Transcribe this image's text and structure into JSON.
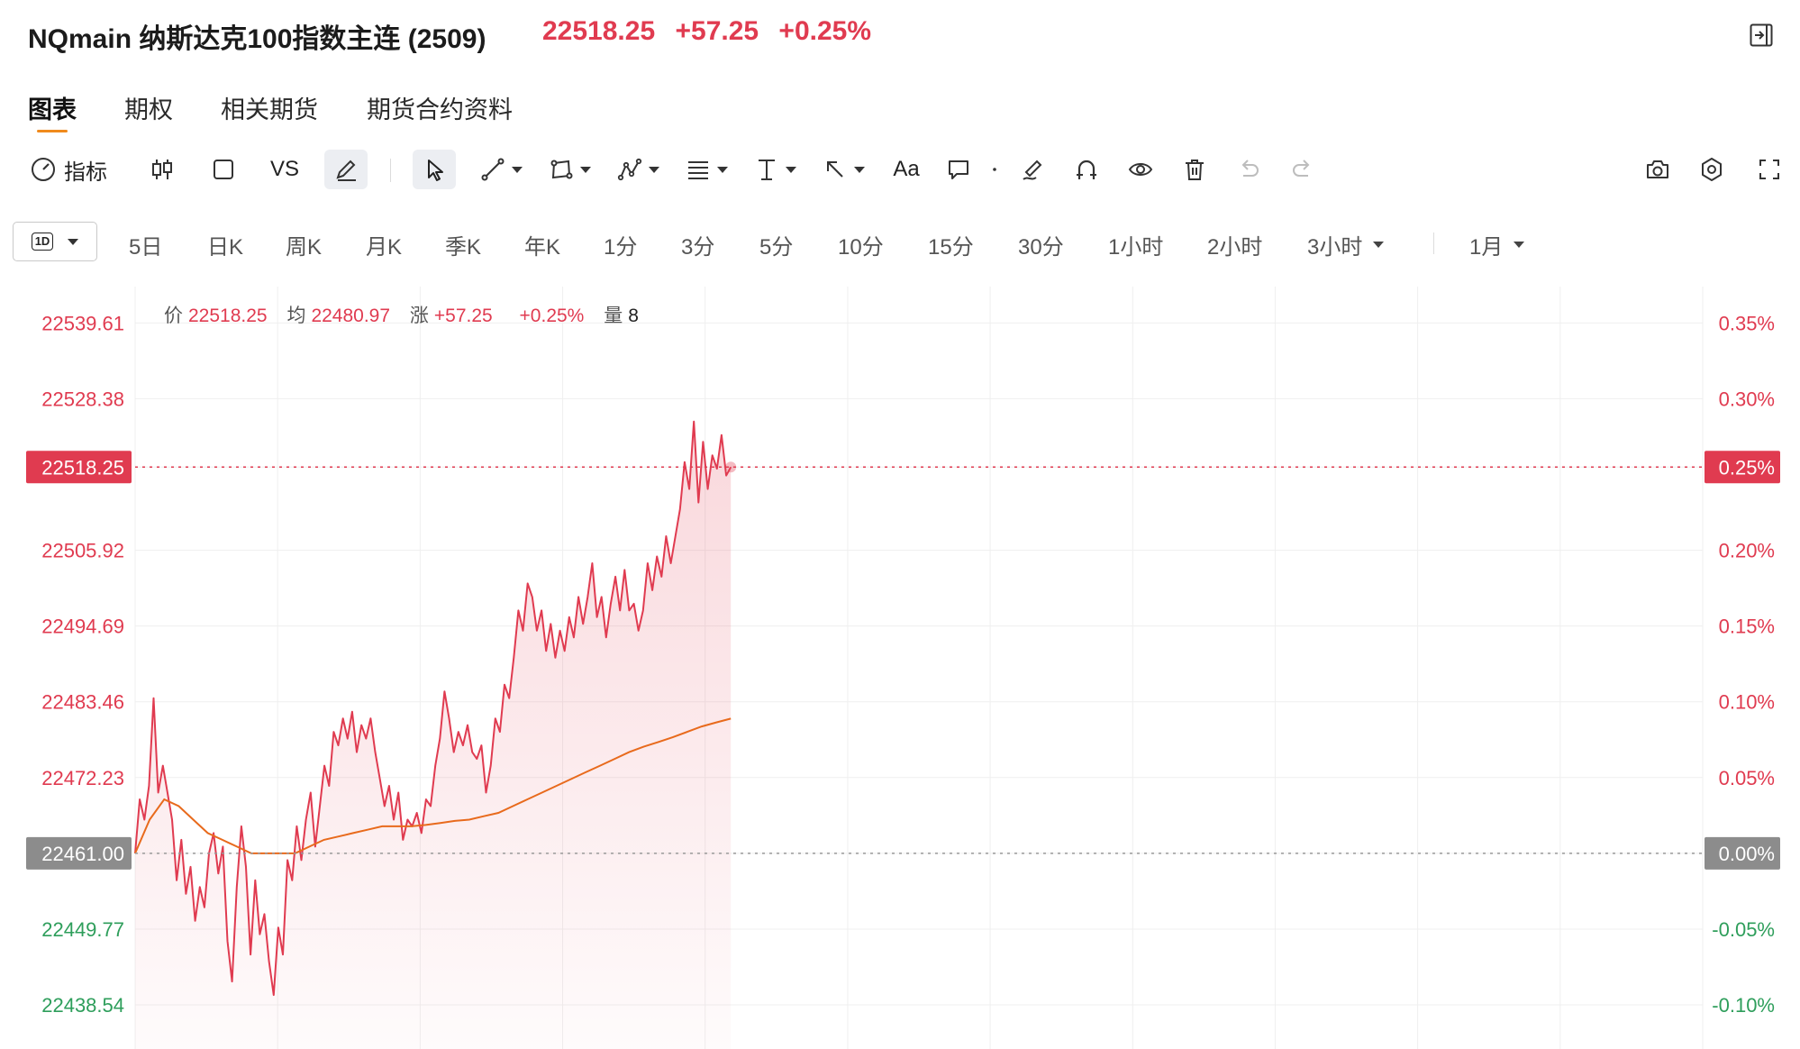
{
  "header": {
    "title": "NQmain 纳斯达克100指数主连 (2509)",
    "price": "22518.25",
    "change": "+57.25",
    "change_pct": "+0.25%"
  },
  "tabs": [
    {
      "label": "图表",
      "active": true
    },
    {
      "label": "期权",
      "active": false
    },
    {
      "label": "相关期货",
      "active": false
    },
    {
      "label": "期货合约资料",
      "active": false
    }
  ],
  "toolbar": {
    "indicator_label": "指标",
    "vs_label": "VS",
    "text_tool_label": "Aa",
    "icons": [
      "gauge-icon",
      "candlestick-icon",
      "square-icon",
      "pen-icon",
      "cursor-icon",
      "line-tool-icon",
      "shape-tool-icon",
      "pattern-tool-icon",
      "fib-tool-icon",
      "vertical-tool-icon",
      "arrow-tool-icon",
      "comment-icon",
      "brush-icon",
      "magnet-icon",
      "eye-icon",
      "trash-icon",
      "undo-icon",
      "redo-icon",
      "camera-icon",
      "settings-icon",
      "fullscreen-icon"
    ]
  },
  "timebar": {
    "selected": "1D",
    "items": [
      "5日",
      "日K",
      "周K",
      "月K",
      "季K",
      "年K",
      "1分",
      "3分",
      "5分",
      "10分",
      "15分",
      "30分",
      "1小时",
      "2小时",
      "3小时"
    ],
    "range": "1月"
  },
  "legend": {
    "price_label": "价",
    "price_value": "22518.25",
    "avg_label": "均",
    "avg_value": "22480.97",
    "change_label": "涨",
    "change_value": "+57.25",
    "pct_value": "+0.25%",
    "volume_label": "量",
    "volume_value": "8"
  },
  "colors": {
    "up": "#e03b50",
    "down": "#2e9e5b",
    "avg_line": "#e86a1c",
    "price_line": "#e03b50",
    "grid": "#efefef",
    "badge_neutral": "#8c8c8c",
    "accent_underline": "#f08a1c"
  },
  "chart_data": {
    "type": "line",
    "title": "",
    "prev_close": 22461.0,
    "current_price": 22518.25,
    "ylim": [
      22432.0,
      22545.0
    ],
    "y_ticks_left": [
      "22539.61",
      "22528.38",
      "22518.25",
      "22505.92",
      "22494.69",
      "22483.46",
      "22472.23",
      "22461.00",
      "22449.77",
      "22438.54"
    ],
    "y_ticks_right": [
      "0.35%",
      "0.30%",
      "0.25%",
      "0.20%",
      "0.15%",
      "0.10%",
      "0.05%",
      "0.00%",
      "-0.05%",
      "-0.10%"
    ],
    "session_fraction_elapsed": 0.38,
    "series": [
      {
        "name": "价",
        "values": [
          22461.0,
          22469.0,
          22466.0,
          22471.0,
          22484.0,
          22470.0,
          22474.0,
          22470.0,
          22466.0,
          22457.0,
          22463.0,
          22455.0,
          22459.0,
          22451.0,
          22456.0,
          22453.0,
          22461.0,
          22464.0,
          22458.0,
          22462.0,
          22448.0,
          22442.0,
          22456.0,
          22465.0,
          22459.0,
          22446.0,
          22457.0,
          22449.0,
          22452.0,
          22445.0,
          22440.0,
          22450.0,
          22446.0,
          22460.0,
          22457.0,
          22465.0,
          22460.0,
          22466.0,
          22470.0,
          22462.0,
          22468.0,
          22474.0,
          22471.0,
          22479.0,
          22477.0,
          22481.0,
          22478.0,
          22482.0,
          22476.0,
          22480.0,
          22478.0,
          22481.0,
          22476.0,
          22472.0,
          22468.0,
          22471.0,
          22466.0,
          22470.0,
          22463.0,
          22466.0,
          22465.0,
          22467.0,
          22464.0,
          22469.0,
          22468.0,
          22474.0,
          22478.0,
          22485.0,
          22481.0,
          22476.0,
          22479.0,
          22477.0,
          22480.0,
          22476.0,
          22475.0,
          22477.0,
          22470.0,
          22474.0,
          22481.0,
          22479.0,
          22486.0,
          22484.0,
          22490.0,
          22497.0,
          22494.0,
          22501.0,
          22499.0,
          22494.0,
          22497.0,
          22491.0,
          22495.0,
          22490.0,
          22494.0,
          22491.0,
          22496.0,
          22493.0,
          22499.0,
          22495.0,
          22499.0,
          22504.0,
          22496.0,
          22499.0,
          22493.0,
          22498.0,
          22502.0,
          22497.0,
          22503.0,
          22497.0,
          22498.0,
          22494.0,
          22497.0,
          22504.0,
          22500.0,
          22505.0,
          22502.0,
          22508.0,
          22504.0,
          22508.0,
          22512.0,
          22519.0,
          22515.0,
          22525.0,
          22513.0,
          22522.0,
          22515.0,
          22520.0,
          22518.0,
          22523.0,
          22517.0,
          22518.25
        ],
        "color": "#e03b50"
      },
      {
        "name": "均",
        "values": [
          22461.0,
          22466.0,
          22469.0,
          22468.0,
          22466.0,
          22464.0,
          22463.0,
          22462.0,
          22461.0,
          22461.0,
          22461.0,
          22461.0,
          22462.0,
          22463.0,
          22463.5,
          22464.0,
          22464.5,
          22465.0,
          22465.0,
          22465.0,
          22465.2,
          22465.5,
          22465.8,
          22466.0,
          22466.5,
          22467.0,
          22468.0,
          22469.0,
          22470.0,
          22471.0,
          22472.0,
          22473.0,
          22474.0,
          22475.0,
          22476.0,
          22476.8,
          22477.5,
          22478.2,
          22479.0,
          22479.8,
          22480.4,
          22480.97
        ],
        "color": "#e86a1c"
      }
    ]
  }
}
